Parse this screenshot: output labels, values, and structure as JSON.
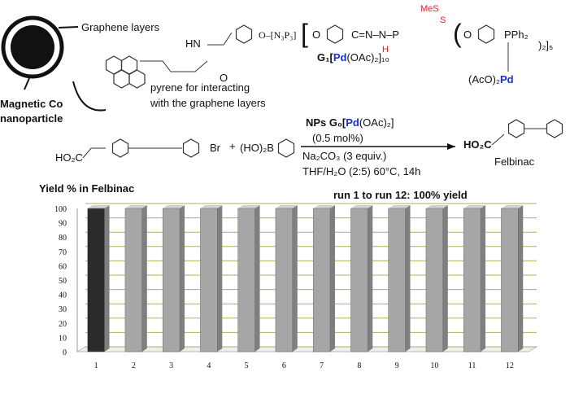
{
  "scheme": {
    "graphene": "Graphene layers",
    "magnetic": "Magnetic Co",
    "nanoparticle": "nanoparticle",
    "pyrene1": "pyrene  for interacting",
    "pyrene2": "with the graphene layers",
    "hn": "HN",
    "amide_o": "O",
    "core": "O–[N₃P₃]",
    "o1": "O",
    "chain": "C=N–N–P",
    "h": "H",
    "mes": "MeS",
    "s": "S",
    "o2": "O",
    "pph2": "PPh₂",
    "close": ")₂]₅",
    "g1a": "G₁[",
    "g1pd": "Pd",
    "g1b": "(OAc)₂]₁₀",
    "aco": "(AcO)₂",
    "acopd": "Pd",
    "cat_a": "NPs G₀[",
    "cat_pd": "Pd",
    "cat_b": "(OAc)₂]",
    "load": "(0.5 mol%)",
    "base": "Na₂CO₃ (3 equiv.)",
    "solvent": "THF/H₂O (2:5) 60°C, 14h",
    "acid": "HO₂C",
    "br": "Br",
    "plus": "+",
    "boron": "(HO)₂B",
    "product_acid": "HO₂C",
    "felbinac": "Felbinac"
  },
  "chart_data": {
    "type": "bar",
    "title": "Yield % in Felbinac",
    "annotation": "run 1 to run 12: 100% yield",
    "categories": [
      "1",
      "2",
      "3",
      "4",
      "5",
      "6",
      "7",
      "8",
      "9",
      "10",
      "11",
      "12"
    ],
    "values": [
      100,
      100,
      100,
      100,
      100,
      100,
      100,
      100,
      100,
      100,
      100,
      100
    ],
    "colors": [
      "#2b2b2b",
      "#a6a6a6",
      "#a6a6a6",
      "#a6a6a6",
      "#a6a6a6",
      "#a6a6a6",
      "#a6a6a6",
      "#a6a6a6",
      "#a6a6a6",
      "#a6a6a6",
      "#a6a6a6",
      "#a6a6a6"
    ],
    "ylim": [
      0,
      100
    ],
    "yticks": [
      0,
      10,
      20,
      30,
      40,
      50,
      60,
      70,
      80,
      90,
      100
    ],
    "grid": true,
    "grid_color": "#9bbb59"
  }
}
